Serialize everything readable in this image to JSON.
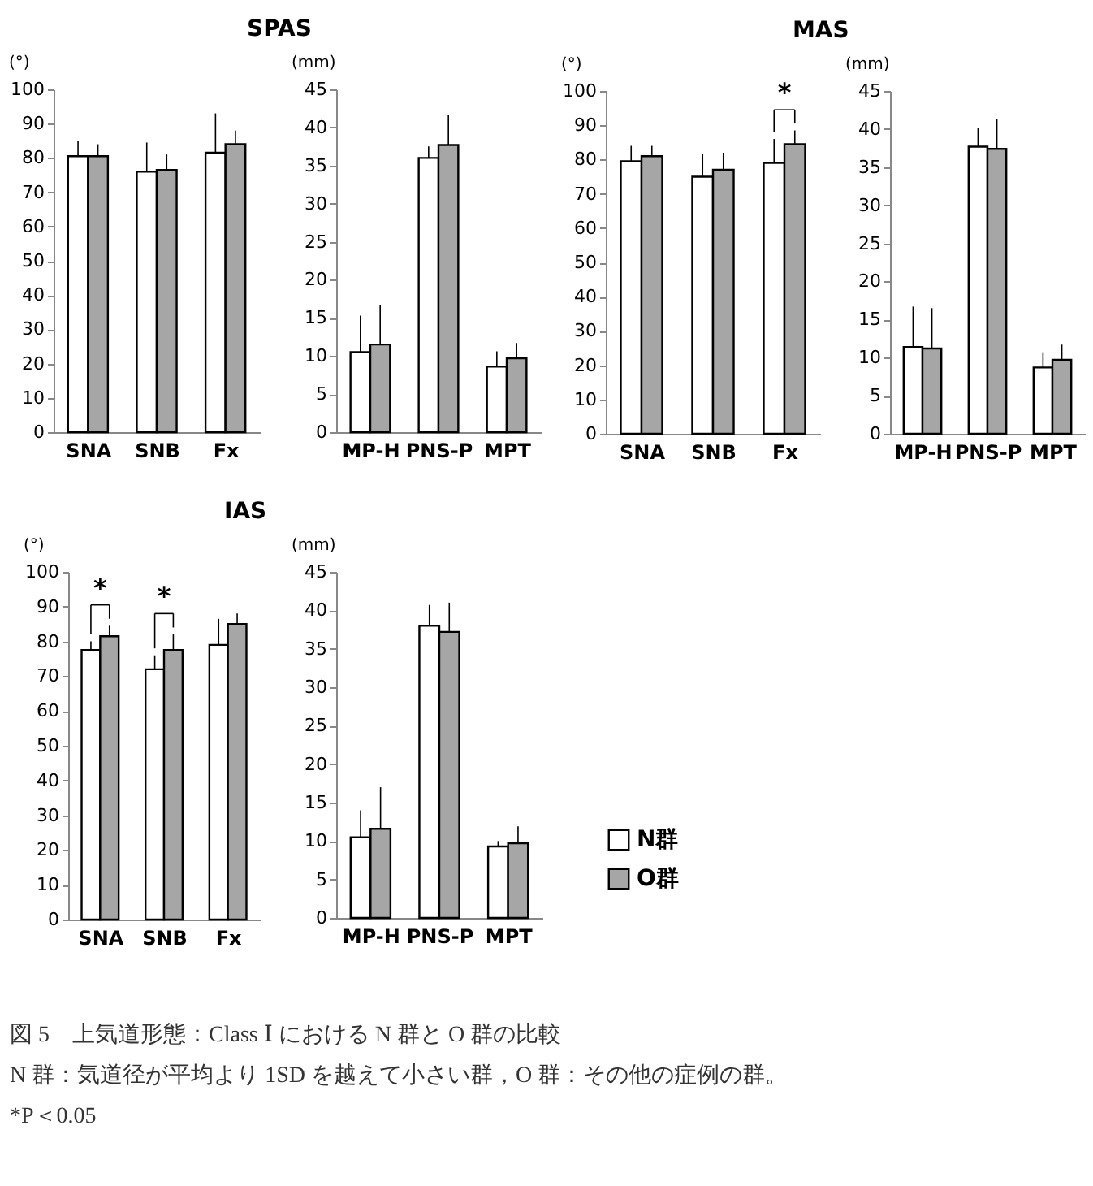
{
  "chart_data": [
    {
      "type": "bar",
      "title": "SPAS",
      "ylabel": "(°)",
      "categories": [
        "SNA",
        "SNB",
        "Fx"
      ],
      "ylim": [
        0,
        100
      ],
      "yticks": [
        0,
        10,
        20,
        30,
        40,
        50,
        60,
        70,
        80,
        90,
        100
      ],
      "series": [
        {
          "color": "#ffffff",
          "values": [
            80.5,
            76,
            81.5
          ],
          "errors": [
            [
              80.5,
              85
            ],
            [
              76,
              84.5
            ],
            [
              81.5,
              93
            ]
          ]
        },
        {
          "color": "#a6a6a6",
          "values": [
            80.5,
            76.5,
            84
          ],
          "errors": [
            [
              80.5,
              84
            ],
            [
              76.5,
              81
            ],
            [
              84,
              88
            ]
          ]
        }
      ]
    },
    {
      "type": "bar",
      "ylabel": "(mm)",
      "categories": [
        "MP-H",
        "PNS-P",
        "MPT"
      ],
      "ylim": [
        0,
        45
      ],
      "yticks": [
        0,
        5,
        10,
        15,
        20,
        25,
        30,
        35,
        40,
        45
      ],
      "series": [
        {
          "color": "#ffffff",
          "values": [
            10.5,
            36,
            8.6
          ],
          "errors": [
            [
              10.5,
              15.3
            ],
            [
              36,
              37.5
            ],
            [
              8.6,
              10.6
            ]
          ]
        },
        {
          "color": "#a6a6a6",
          "values": [
            11.5,
            37.7,
            9.7
          ],
          "errors": [
            [
              11.5,
              16.7
            ],
            [
              37.7,
              41.6
            ],
            [
              9.7,
              11.7
            ]
          ]
        }
      ]
    },
    {
      "type": "bar",
      "title": "MAS",
      "ylabel": "(°)",
      "categories": [
        "SNA",
        "SNB",
        "Fx"
      ],
      "ylim": [
        0,
        100
      ],
      "yticks": [
        0,
        10,
        20,
        30,
        40,
        50,
        60,
        70,
        80,
        90,
        100
      ],
      "annotations": [
        "*"
      ],
      "series": [
        {
          "color": "#ffffff",
          "values": [
            79.5,
            75,
            79
          ],
          "errors": [
            [
              79.5,
              84
            ],
            [
              75,
              81.5
            ],
            [
              79,
              86
            ]
          ]
        },
        {
          "color": "#a6a6a6",
          "values": [
            81,
            77,
            84.5
          ],
          "errors": [
            [
              81,
              84
            ],
            [
              77,
              82
            ],
            [
              84.5,
              88.5
            ]
          ]
        }
      ]
    },
    {
      "type": "bar",
      "ylabel": "(mm)",
      "categories": [
        "MP-H",
        "PNS-P",
        "MPT"
      ],
      "ylim": [
        0,
        45
      ],
      "yticks": [
        0,
        5,
        10,
        15,
        20,
        25,
        30,
        35,
        40,
        45
      ],
      "series": [
        {
          "color": "#ffffff",
          "values": [
            11.4,
            37.7,
            8.7
          ],
          "errors": [
            [
              11.4,
              16.7
            ],
            [
              37.7,
              40.1
            ],
            [
              8.7,
              10.7
            ]
          ]
        },
        {
          "color": "#a6a6a6",
          "values": [
            11.2,
            37.4,
            9.7
          ],
          "errors": [
            [
              11.2,
              16.5
            ],
            [
              37.4,
              41.3
            ],
            [
              9.7,
              11.7
            ]
          ]
        }
      ]
    },
    {
      "type": "bar",
      "title": "IAS",
      "ylabel": "(°)",
      "categories": [
        "SNA",
        "SNB",
        "Fx"
      ],
      "ylim": [
        0,
        100
      ],
      "yticks": [
        0,
        10,
        20,
        30,
        40,
        50,
        60,
        70,
        80,
        90,
        100
      ],
      "annotations": [
        "*",
        "*"
      ],
      "series": [
        {
          "color": "#ffffff",
          "values": [
            77.5,
            72,
            79
          ],
          "errors": [
            [
              77.5,
              80
            ],
            [
              72,
              76
            ],
            [
              79,
              86.5
            ]
          ]
        },
        {
          "color": "#a6a6a6",
          "values": [
            81.5,
            77.5,
            85
          ],
          "errors": [
            [
              81.5,
              84.5
            ],
            [
              77.5,
              82
            ],
            [
              85,
              88
            ]
          ]
        }
      ]
    },
    {
      "type": "bar",
      "ylabel": "(mm)",
      "categories": [
        "MP-H",
        "PNS-P",
        "MPT"
      ],
      "ylim": [
        0,
        45
      ],
      "yticks": [
        0,
        5,
        10,
        15,
        20,
        25,
        30,
        35,
        40,
        45
      ],
      "legend": "right",
      "annotations": [
        "図 5　上気道形態：Class Ⅰ における N 群と O 群の比較",
        "N 群：気道径が平均より 1SD を越えて小さい群，O 群：その他の症例の群。",
        "*P＜0.05"
      ],
      "series": [
        {
          "name": "N群",
          "color": "#ffffff",
          "values": [
            10.5,
            38,
            9.3
          ],
          "errors": [
            [
              10.5,
              14
            ],
            [
              38,
              40.7
            ],
            [
              9.3,
              10
            ]
          ]
        },
        {
          "name": "O群",
          "color": "#a6a6a6",
          "values": [
            11.6,
            37.2,
            9.7
          ],
          "errors": [
            [
              11.6,
              17
            ],
            [
              37.2,
              41
            ],
            [
              9.7,
              11.9
            ]
          ]
        }
      ]
    }
  ]
}
